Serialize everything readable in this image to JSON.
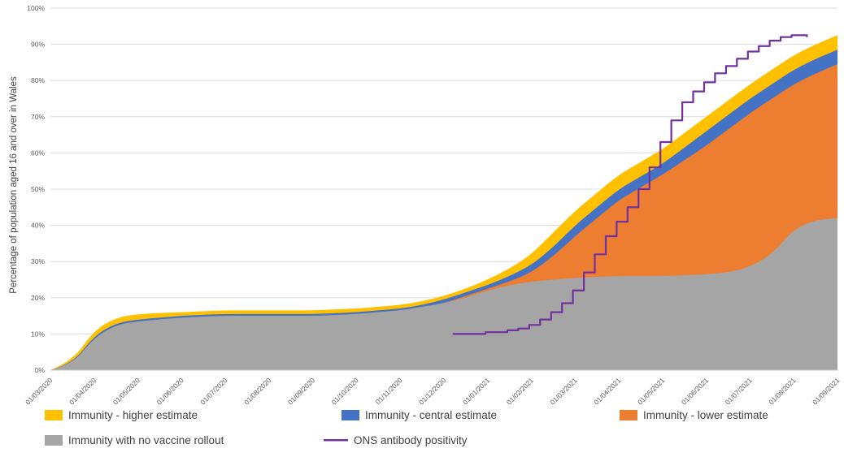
{
  "chart_data": {
    "type": "area",
    "title": "",
    "xlabel": "",
    "ylabel": "Percentage of population aged 16 and over in Wales",
    "ylim": [
      0,
      100
    ],
    "grid": "horizontal",
    "legend_position": "bottom",
    "y_tick_labels": [
      "0%",
      "10%",
      "20%",
      "30%",
      "40%",
      "50%",
      "60%",
      "70%",
      "80%",
      "90%",
      "100%"
    ],
    "x_labels": [
      "01/03/2020",
      "01/04/2020",
      "01/05/2020",
      "01/06/2020",
      "01/07/2020",
      "01/08/2020",
      "01/09/2020",
      "01/10/2020",
      "01/11/2020",
      "01/12/2020",
      "01/01/2021",
      "01/02/2021",
      "01/03/2021",
      "01/04/2021",
      "01/05/2021",
      "01/06/2021",
      "01/07/2021",
      "01/08/2021",
      "01/09/2021"
    ],
    "x_months_span": 18,
    "x": [
      0,
      0.5,
      1,
      1.5,
      2,
      2.5,
      3,
      3.5,
      4,
      4.5,
      5,
      5.5,
      6,
      6.5,
      7,
      7.5,
      8,
      8.5,
      9,
      9.5,
      10,
      10.5,
      11,
      11.5,
      12,
      12.5,
      13,
      13.5,
      14,
      14.5,
      15,
      15.5,
      16,
      16.5,
      17,
      17.5,
      18
    ],
    "series": [
      {
        "name": "Immunity - higher estimate",
        "type": "area",
        "color": "#FFC000",
        "values": [
          0,
          2.5,
          11,
          14.5,
          15.5,
          15.8,
          16,
          16.3,
          16.5,
          16.5,
          16.5,
          16.5,
          16.5,
          16.8,
          17,
          17.5,
          18,
          19,
          20.5,
          22.5,
          25,
          28,
          32,
          38,
          44,
          49,
          54,
          57.5,
          61,
          65.5,
          70,
          74.5,
          79,
          83,
          87,
          90,
          92.5
        ]
      },
      {
        "name": "Immunity - central estimate",
        "type": "area",
        "color": "#4472C4",
        "values": [
          0,
          1.7,
          9.5,
          13,
          14,
          14.5,
          15,
          15.3,
          15.5,
          15.5,
          15.5,
          15.5,
          15.5,
          15.7,
          16,
          16.5,
          17,
          18,
          19.5,
          21.5,
          23.5,
          26,
          29,
          34,
          40,
          45,
          50,
          53.5,
          57,
          61.5,
          66,
          70.5,
          75,
          79,
          83,
          86,
          88.5
        ]
      },
      {
        "name": "Immunity - lower estimate",
        "type": "area",
        "color": "#ED7D31",
        "values": [
          0,
          1.5,
          9,
          12.5,
          13.5,
          14,
          14.5,
          14.8,
          15,
          15,
          15,
          15,
          15,
          15.2,
          15.5,
          16,
          16.5,
          17.5,
          18.5,
          20.5,
          22.5,
          24.5,
          27,
          31.5,
          37,
          42,
          47,
          50.5,
          54,
          58,
          62,
          66.5,
          71,
          75,
          79,
          82,
          84.5
        ]
      },
      {
        "name": "Immunity with no vaccine rollout",
        "type": "area",
        "color": "#A5A5A5",
        "values": [
          0,
          1.5,
          9,
          12.5,
          13.5,
          14,
          14.5,
          14.8,
          15,
          15,
          15,
          15,
          15,
          15.2,
          15.5,
          16,
          16.5,
          17.5,
          18.5,
          20,
          22,
          23.5,
          24.5,
          25,
          25.5,
          25.8,
          26,
          26,
          26,
          26.2,
          26.5,
          27,
          28.5,
          32,
          39,
          41.5,
          42
        ]
      },
      {
        "name": "ONS antibody positivity",
        "type": "line",
        "color": "#7030A0",
        "x": [
          9.2,
          9.45,
          9.7,
          9.95,
          10.2,
          10.45,
          10.7,
          10.95,
          11.2,
          11.45,
          11.7,
          11.95,
          12.2,
          12.45,
          12.7,
          12.95,
          13.2,
          13.45,
          13.7,
          13.95,
          14.2,
          14.45,
          14.7,
          14.95,
          15.2,
          15.45,
          15.7,
          15.95,
          16.2,
          16.45,
          16.7,
          16.95,
          17.1,
          17.3
        ],
        "values": [
          10,
          10,
          10,
          10.5,
          10.5,
          11,
          11.5,
          12.5,
          14,
          16,
          18.5,
          22,
          27,
          32,
          37,
          41,
          45,
          50,
          56,
          63,
          69,
          74,
          77,
          79.5,
          82,
          84,
          86,
          88,
          89.5,
          91,
          92,
          92.5,
          92.5,
          92
        ]
      }
    ]
  }
}
